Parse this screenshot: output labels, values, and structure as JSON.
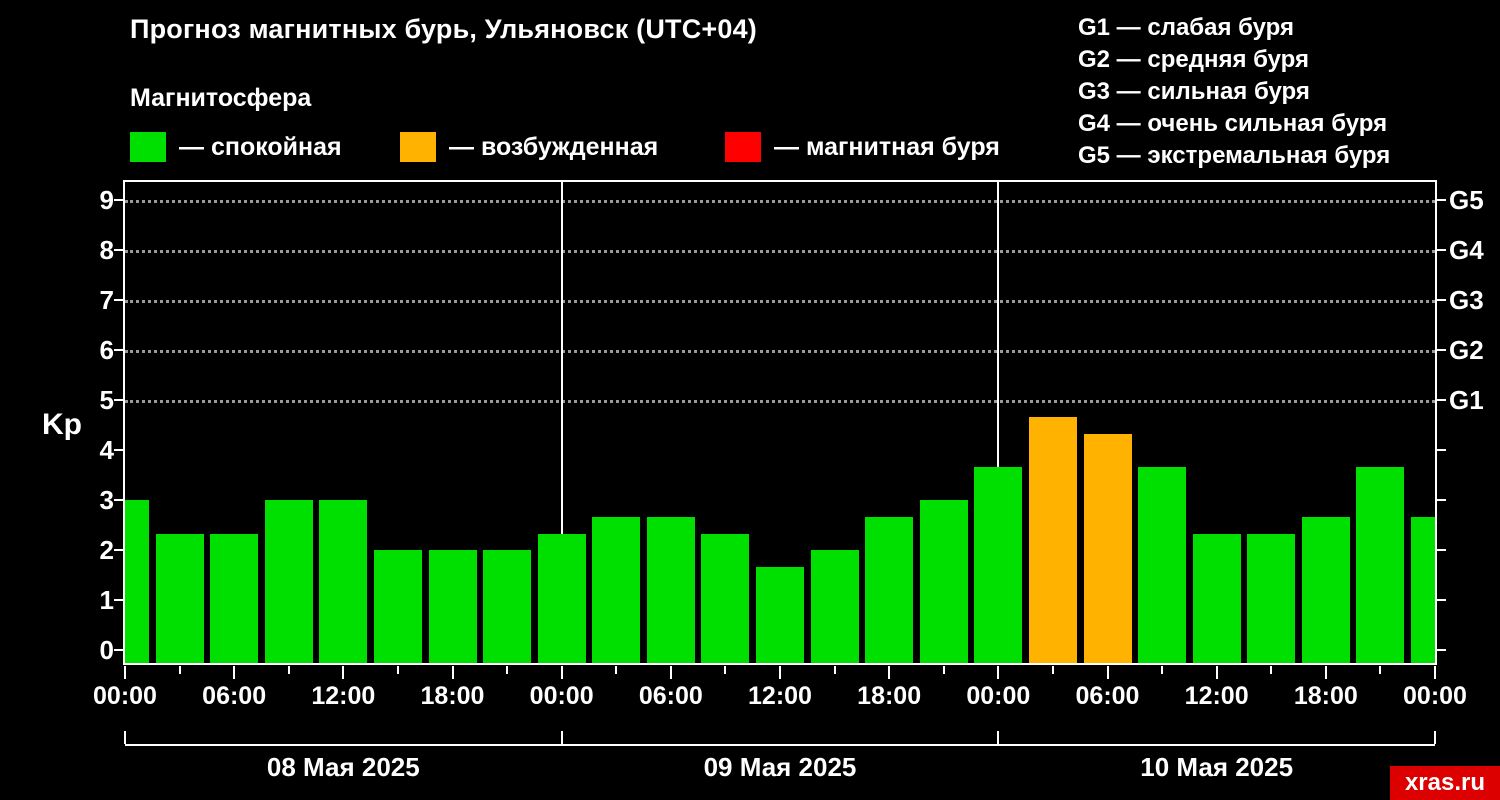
{
  "header": {
    "title": "Прогноз магнитных бурь, Ульяновск (UTC+04)",
    "subtitle": "Магнитосфера"
  },
  "legend": {
    "items": [
      {
        "id": "quiet",
        "label": "— спокойная",
        "color": "#00e000"
      },
      {
        "id": "excited",
        "label": "— возбужденная",
        "color": "#ffb300"
      },
      {
        "id": "storm",
        "label": "— магнитная буря",
        "color": "#ff0000"
      }
    ]
  },
  "g_legend": {
    "lines": [
      "G1 — слабая буря",
      "G2 — средняя буря",
      "G3 — сильная буря",
      "G4 — очень сильная буря",
      "G5 — экстремальная буря"
    ]
  },
  "watermark": "xras.ru",
  "watermark_bg": "#dd0000",
  "chart_data": {
    "type": "bar",
    "title": "Прогноз магнитных бурь, Ульяновск (UTC+04)",
    "ylabel": "Kp",
    "ylim": [
      0,
      9.5
    ],
    "yticks": [
      0,
      1,
      2,
      3,
      4,
      5,
      6,
      7,
      8,
      9
    ],
    "grid_levels": [
      5,
      6,
      7,
      8,
      9
    ],
    "right_axis": [
      {
        "label": "G1",
        "value": 5
      },
      {
        "label": "G2",
        "value": 6
      },
      {
        "label": "G3",
        "value": 7
      },
      {
        "label": "G4",
        "value": 8
      },
      {
        "label": "G5",
        "value": 9
      }
    ],
    "x_total_hours": 72,
    "x_major_step_hours": 6,
    "x_minor_step_hours": 3,
    "xtick_labels": [
      "00:00",
      "06:00",
      "12:00",
      "18:00",
      "00:00",
      "06:00",
      "12:00",
      "18:00",
      "00:00",
      "06:00",
      "12:00",
      "18:00",
      "00:00"
    ],
    "day_boundaries_hours": [
      24,
      48
    ],
    "days": [
      {
        "label": "08 Мая 2025",
        "start_hour": 0,
        "span_hours": 24
      },
      {
        "label": "09 Мая 2025",
        "start_hour": 24,
        "span_hours": 24
      },
      {
        "label": "10 Мая 2025",
        "start_hour": 48,
        "span_hours": 24
      }
    ],
    "colors": {
      "quiet": "#00e000",
      "excited": "#ffb300",
      "storm": "#ff0000"
    },
    "bars": [
      {
        "hour": 0,
        "kp": 3.0,
        "state": "quiet"
      },
      {
        "hour": 3,
        "kp": 2.33,
        "state": "quiet"
      },
      {
        "hour": 6,
        "kp": 2.33,
        "state": "quiet"
      },
      {
        "hour": 9,
        "kp": 3.0,
        "state": "quiet"
      },
      {
        "hour": 12,
        "kp": 3.0,
        "state": "quiet"
      },
      {
        "hour": 15,
        "kp": 2.0,
        "state": "quiet"
      },
      {
        "hour": 18,
        "kp": 2.0,
        "state": "quiet"
      },
      {
        "hour": 21,
        "kp": 2.0,
        "state": "quiet"
      },
      {
        "hour": 24,
        "kp": 2.33,
        "state": "quiet"
      },
      {
        "hour": 27,
        "kp": 2.67,
        "state": "quiet"
      },
      {
        "hour": 30,
        "kp": 2.67,
        "state": "quiet"
      },
      {
        "hour": 33,
        "kp": 2.33,
        "state": "quiet"
      },
      {
        "hour": 36,
        "kp": 1.67,
        "state": "quiet"
      },
      {
        "hour": 39,
        "kp": 2.0,
        "state": "quiet"
      },
      {
        "hour": 42,
        "kp": 2.67,
        "state": "quiet"
      },
      {
        "hour": 45,
        "kp": 3.0,
        "state": "quiet"
      },
      {
        "hour": 48,
        "kp": 3.67,
        "state": "quiet"
      },
      {
        "hour": 51,
        "kp": 4.67,
        "state": "excited"
      },
      {
        "hour": 54,
        "kp": 4.33,
        "state": "excited"
      },
      {
        "hour": 57,
        "kp": 3.67,
        "state": "quiet"
      },
      {
        "hour": 60,
        "kp": 2.33,
        "state": "quiet"
      },
      {
        "hour": 63,
        "kp": 2.33,
        "state": "quiet"
      },
      {
        "hour": 66,
        "kp": 2.67,
        "state": "quiet"
      },
      {
        "hour": 69,
        "kp": 3.67,
        "state": "quiet"
      },
      {
        "hour": 72,
        "kp": 2.67,
        "state": "quiet"
      }
    ]
  }
}
